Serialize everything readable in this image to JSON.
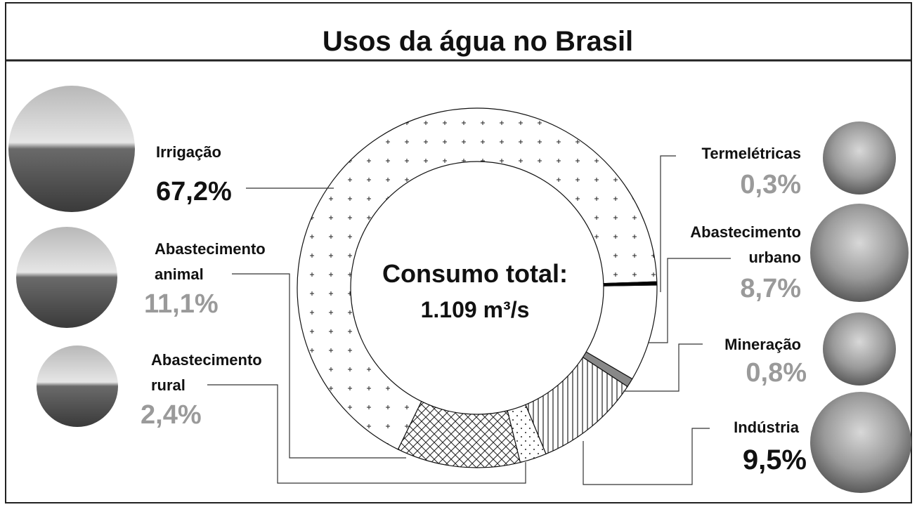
{
  "chart_data": {
    "type": "donut",
    "title": "Usos da água no Brasil",
    "center_label": [
      "Consumo total:",
      "1.109 m³/s"
    ],
    "categories": [
      "Irrigação",
      "Abastecimento animal",
      "Abastecimento rural",
      "Indústria",
      "Mineração",
      "Abastecimento urbano",
      "Termelétricas"
    ],
    "values": [
      67.2,
      11.1,
      2.4,
      9.5,
      0.8,
      8.7,
      0.3
    ],
    "value_labels": [
      "67,2%",
      "11,1%",
      "2,4%",
      "9,5%",
      "0,8%",
      "8,7%",
      "0,3%"
    ],
    "fills": [
      "plus",
      "crosshatch",
      "dots",
      "vertical",
      "gray",
      "white",
      "black"
    ],
    "value_label_colors": [
      "#111111",
      "#9a9a9a",
      "#9a9a9a",
      "#111111",
      "#9a9a9a",
      "#9a9a9a",
      "#9a9a9a"
    ]
  }
}
